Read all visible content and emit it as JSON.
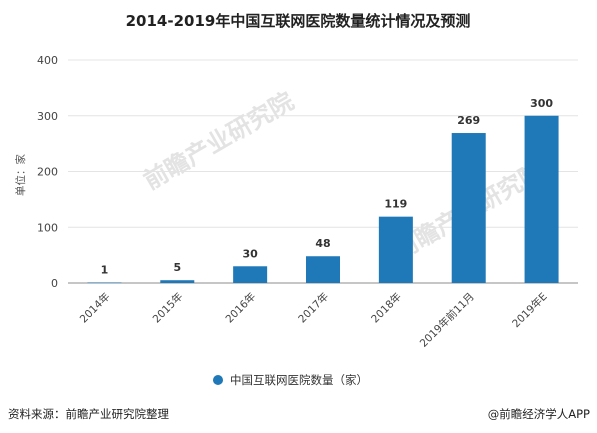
{
  "title": "2014-2019年中国互联网医院数量统计情况及预测",
  "ylabel": "单位：家",
  "legend_label": "中国互联网医院数量（家）",
  "source": "资料来源：前瞻产业研究院整理",
  "brand": "@前瞻经济学人APP",
  "watermark": "前瞻产业研究院",
  "colors": {
    "bar": "#1f78b8",
    "grid": "#e4e4e4",
    "axis": "#8c8c8c"
  },
  "chart_data": {
    "type": "bar",
    "title": "2014-2019年中国互联网医院数量统计情况及预测",
    "ylabel": "单位：家",
    "categories": [
      "2014年",
      "2015年",
      "2016年",
      "2017年",
      "2018年",
      "2019年前11月",
      "2019年E"
    ],
    "series": [
      {
        "name": "中国互联网医院数量（家）",
        "values": [
          1,
          5,
          30,
          48,
          119,
          269,
          300
        ]
      }
    ],
    "ylim": [
      0,
      400
    ],
    "yticks": [
      0,
      100,
      200,
      300,
      400
    ],
    "grid": true,
    "legend_position": "bottom"
  }
}
